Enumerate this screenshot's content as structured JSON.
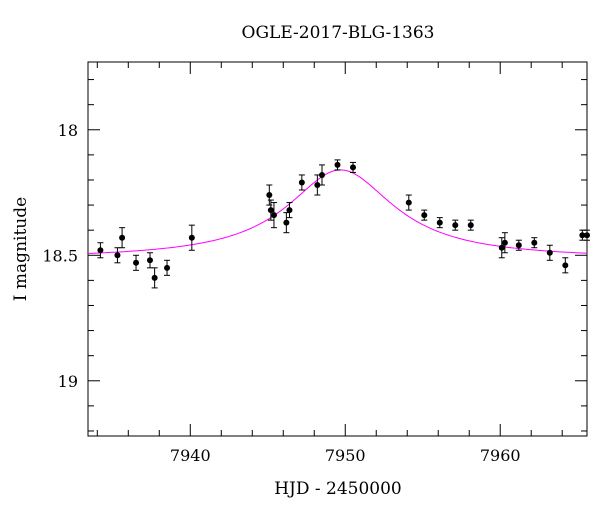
{
  "chart_data": {
    "type": "scatter",
    "title": "OGLE-2017-BLG-1363",
    "xlabel": "HJD - 2450000",
    "ylabel": "I magnitude",
    "xlim": [
      7933.4,
      7965.6
    ],
    "ylim": [
      19.22,
      17.73
    ],
    "y_inverted": true,
    "x_ticks": [
      {
        "value": 7940,
        "label": "7940"
      },
      {
        "value": 7950,
        "label": "7950"
      },
      {
        "value": 7960,
        "label": "7960"
      }
    ],
    "y_ticks": [
      {
        "value": 18.0,
        "label": "18"
      },
      {
        "value": 18.5,
        "label": "18.5"
      },
      {
        "value": 19.0,
        "label": "19"
      }
    ],
    "x_minor_step": 2,
    "y_minor_step": 0.1,
    "series": [
      {
        "kind": "points",
        "color": "#000000",
        "points": [
          {
            "x": 7934.2,
            "y": 18.48,
            "err": 0.03
          },
          {
            "x": 7935.3,
            "y": 18.5,
            "err": 0.03
          },
          {
            "x": 7935.6,
            "y": 18.43,
            "err": 0.04
          },
          {
            "x": 7936.5,
            "y": 18.53,
            "err": 0.03
          },
          {
            "x": 7937.4,
            "y": 18.52,
            "err": 0.03
          },
          {
            "x": 7937.7,
            "y": 18.59,
            "err": 0.04
          },
          {
            "x": 7938.5,
            "y": 18.55,
            "err": 0.03
          },
          {
            "x": 7940.1,
            "y": 18.43,
            "err": 0.05
          },
          {
            "x": 7945.1,
            "y": 18.26,
            "err": 0.04
          },
          {
            "x": 7945.2,
            "y": 18.32,
            "err": 0.04
          },
          {
            "x": 7945.4,
            "y": 18.34,
            "err": 0.05
          },
          {
            "x": 7946.2,
            "y": 18.37,
            "err": 0.04
          },
          {
            "x": 7946.4,
            "y": 18.32,
            "err": 0.03
          },
          {
            "x": 7947.2,
            "y": 18.21,
            "err": 0.03
          },
          {
            "x": 7948.2,
            "y": 18.22,
            "err": 0.04
          },
          {
            "x": 7948.5,
            "y": 18.18,
            "err": 0.04
          },
          {
            "x": 7949.5,
            "y": 18.14,
            "err": 0.02
          },
          {
            "x": 7950.5,
            "y": 18.15,
            "err": 0.02
          },
          {
            "x": 7954.1,
            "y": 18.29,
            "err": 0.03
          },
          {
            "x": 7955.1,
            "y": 18.34,
            "err": 0.02
          },
          {
            "x": 7956.1,
            "y": 18.37,
            "err": 0.02
          },
          {
            "x": 7957.1,
            "y": 18.38,
            "err": 0.02
          },
          {
            "x": 7958.1,
            "y": 18.38,
            "err": 0.02
          },
          {
            "x": 7960.1,
            "y": 18.47,
            "err": 0.04
          },
          {
            "x": 7960.3,
            "y": 18.45,
            "err": 0.04
          },
          {
            "x": 7961.2,
            "y": 18.46,
            "err": 0.02
          },
          {
            "x": 7962.2,
            "y": 18.45,
            "err": 0.02
          },
          {
            "x": 7963.2,
            "y": 18.49,
            "err": 0.03
          },
          {
            "x": 7964.2,
            "y": 18.54,
            "err": 0.03
          },
          {
            "x": 7965.3,
            "y": 18.42,
            "err": 0.02
          },
          {
            "x": 7965.6,
            "y": 18.42,
            "err": 0.02
          }
        ]
      },
      {
        "kind": "model-curve",
        "color": "#ff00ff",
        "peak_x": 7949.7,
        "peak_y": 18.16,
        "baseline_y": 18.515,
        "width": 4.2
      }
    ],
    "grid": false,
    "legend": "none"
  }
}
